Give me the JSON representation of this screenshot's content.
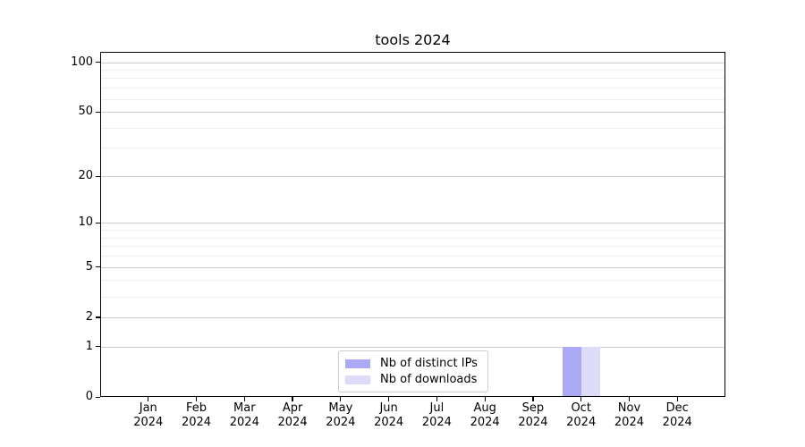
{
  "chart_data": {
    "type": "bar",
    "title": "tools 2024",
    "categories": [
      "Jan 2024",
      "Feb 2024",
      "Mar 2024",
      "Apr 2024",
      "May 2024",
      "Jun 2024",
      "Jul 2024",
      "Aug 2024",
      "Sep 2024",
      "Oct 2024",
      "Nov 2024",
      "Dec 2024"
    ],
    "series": [
      {
        "name": "Nb of distinct IPs",
        "color": "#a9a9f5",
        "values": [
          0,
          0,
          0,
          0,
          0,
          0,
          0,
          0,
          0,
          1,
          0,
          0
        ]
      },
      {
        "name": "Nb of downloads",
        "color": "#dcdcf9",
        "values": [
          0,
          0,
          0,
          0,
          0,
          0,
          0,
          0,
          0,
          1,
          0,
          0
        ]
      }
    ],
    "xlabel": "",
    "ylabel": "",
    "yscale": "log1p",
    "ylim": [
      0,
      114
    ],
    "y_tick_labels": [
      100,
      50,
      20,
      10,
      5,
      2,
      1,
      0
    ],
    "y_minor_gridlines": [
      90,
      80,
      70,
      60,
      40,
      30,
      9,
      8,
      7,
      6,
      4,
      3
    ],
    "grid": true,
    "legend_position": "lower center"
  },
  "colors": {
    "axis": "#000000",
    "grid_major": "#cccccc",
    "grid_minor": "#efefef",
    "legend_border": "#cccccc",
    "background": "#ffffff"
  }
}
